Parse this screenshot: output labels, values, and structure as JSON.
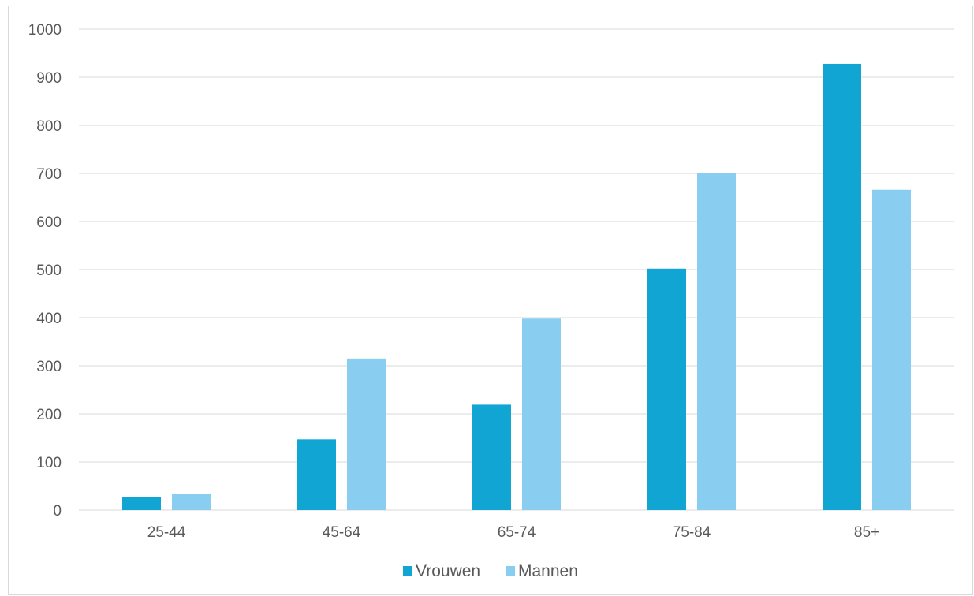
{
  "chart_data": {
    "type": "bar",
    "categories": [
      "25-44",
      "45-64",
      "65-74",
      "75-84",
      "85+"
    ],
    "series": [
      {
        "name": "Vrouwen",
        "values": [
          27,
          147,
          219,
          502,
          928
        ]
      },
      {
        "name": "Mannen",
        "values": [
          33,
          315,
          398,
          701,
          666
        ]
      }
    ],
    "ylim": [
      0,
      1000
    ],
    "yticks": [
      0,
      100,
      200,
      300,
      400,
      500,
      600,
      700,
      800,
      900,
      1000
    ],
    "grid": true,
    "legend_position": "bottom",
    "colors": {
      "Vrouwen": "#10a5d3",
      "Mannen": "#89cdf1",
      "grid": "#d9d9d9",
      "text": "#595959"
    }
  }
}
